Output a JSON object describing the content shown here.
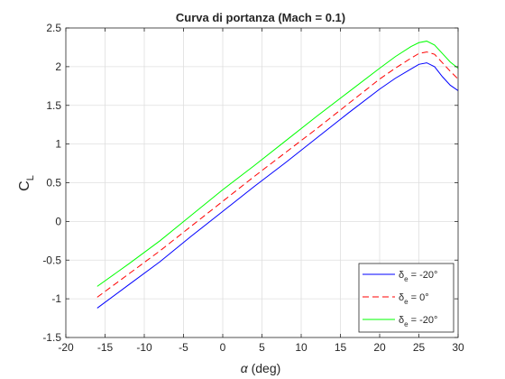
{
  "chart_data": {
    "type": "line",
    "title": "Curva di portanza (Mach = 0.1)",
    "xlabel": {
      "symbol": "α",
      "text": " (deg)"
    },
    "ylabel": {
      "main": "C",
      "sub": "L"
    },
    "xlim": [
      -20,
      30
    ],
    "ylim": [
      -1.5,
      2.5
    ],
    "xticks": [
      -20,
      -15,
      -10,
      -5,
      0,
      5,
      10,
      15,
      20,
      25,
      30
    ],
    "yticks": [
      -1.5,
      -1,
      -0.5,
      0,
      0.5,
      1,
      1.5,
      2,
      2.5
    ],
    "xtick_labels": [
      "-20",
      "-15",
      "-10",
      "-5",
      "0",
      "5",
      "10",
      "15",
      "20",
      "25",
      "30"
    ],
    "ytick_labels": [
      "-1.5",
      "-1",
      "-0.5",
      "0",
      "0.5",
      "1",
      "1.5",
      "2",
      "2.5"
    ],
    "grid": true,
    "legend_position": "bottom-right",
    "series": [
      {
        "name": {
          "sym": "δ",
          "sub": "e",
          "rest": " = -20°"
        },
        "color": "#0000ff",
        "dash": "solid",
        "x": [
          -16,
          -12,
          -8,
          -4,
          0,
          4,
          8,
          12,
          16,
          20,
          22,
          24,
          25,
          26,
          27,
          28,
          29,
          30
        ],
        "y": [
          -1.12,
          -0.82,
          -0.52,
          -0.19,
          0.13,
          0.45,
          0.76,
          1.08,
          1.4,
          1.71,
          1.85,
          1.97,
          2.03,
          2.05,
          2.0,
          1.87,
          1.76,
          1.69
        ]
      },
      {
        "name": {
          "sym": "δ",
          "sub": "e",
          "rest": " = 0°"
        },
        "color": "#ff0000",
        "dash": "dashed",
        "x": [
          -16,
          -12,
          -8,
          -4,
          0,
          4,
          8,
          12,
          16,
          20,
          22,
          24,
          25,
          26,
          27,
          28,
          29,
          30
        ],
        "y": [
          -0.98,
          -0.68,
          -0.38,
          -0.06,
          0.26,
          0.58,
          0.89,
          1.2,
          1.52,
          1.84,
          1.98,
          2.11,
          2.17,
          2.19,
          2.16,
          2.05,
          1.94,
          1.84
        ]
      },
      {
        "name": {
          "sym": "δ",
          "sub": "e",
          "rest": " = -20°"
        },
        "color": "#00ff00",
        "dash": "solid",
        "x": [
          -16,
          -12,
          -8,
          -4,
          0,
          4,
          8,
          12,
          16,
          20,
          22,
          24,
          25,
          26,
          27,
          28,
          29,
          30
        ],
        "y": [
          -0.84,
          -0.55,
          -0.25,
          0.08,
          0.41,
          0.72,
          1.04,
          1.36,
          1.67,
          1.98,
          2.13,
          2.26,
          2.31,
          2.33,
          2.28,
          2.17,
          2.06,
          1.98
        ]
      }
    ]
  }
}
